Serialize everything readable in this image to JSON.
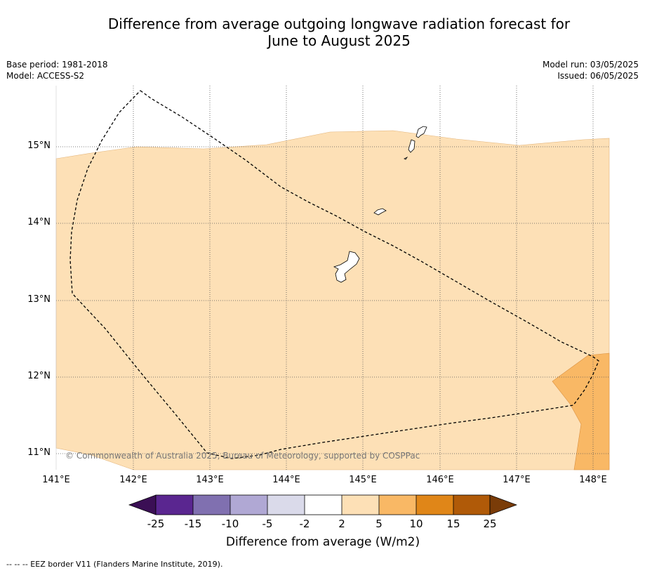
{
  "title": {
    "line1": "Difference from average outgoing longwave radiation forecast for",
    "line2": "June to August 2025"
  },
  "meta_left": {
    "base_period": "Base period: 1981-2018",
    "model": "Model: ACCESS-S2"
  },
  "meta_right": {
    "model_run": "Model run: 03/05/2025",
    "issued": "Issued: 06/05/2025"
  },
  "map": {
    "lat_labels": [
      "15°N",
      "14°N",
      "13°N",
      "12°N",
      "11°N"
    ],
    "lon_labels": [
      "141°E",
      "142°E",
      "143°E",
      "144°E",
      "145°E",
      "146°E",
      "147°E",
      "148°E"
    ],
    "land_color": "#ffffff",
    "copyright": "© Commonwealth of Australia 2025, Bureau of Meteorology, supported by COSPPac"
  },
  "colorbar": {
    "ticks": [
      "-25",
      "-15",
      "-10",
      "-5",
      "-2",
      "2",
      "5",
      "10",
      "15",
      "25"
    ],
    "colors": [
      "#3b0f55",
      "#5a2690",
      "#8070b0",
      "#b0a8d4",
      "#dadaea",
      "#ffffff",
      "#fde0b6",
      "#f9b865",
      "#e08618",
      "#b05a08",
      "#7a3c08"
    ],
    "title": "Difference from average (W/m2)"
  },
  "footnote": "--  --  -- EEZ border V11 (Flanders Marine Institute, 2019)."
}
